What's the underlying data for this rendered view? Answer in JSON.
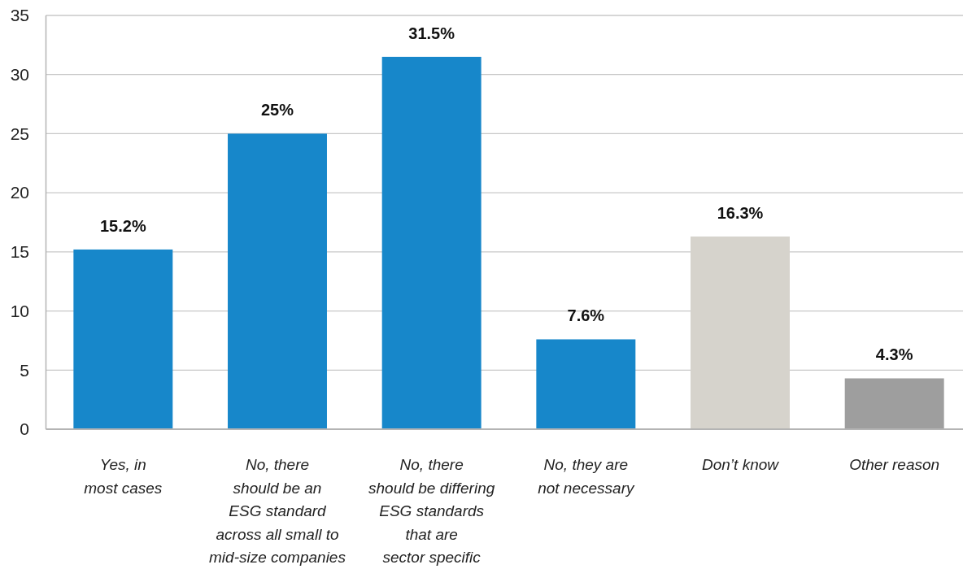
{
  "chart_data": {
    "type": "bar",
    "categories": [
      "Yes, in\nmost cases",
      "No, there\nshould be an\nESG standard\nacross all small to\nmid-size companies",
      "No, there\nshould be differing\nESG standards\nthat are\nsector specific",
      "No, they are\nnot necessary",
      "Don’t know",
      "Other reason"
    ],
    "values": [
      15.2,
      25,
      31.5,
      7.6,
      16.3,
      4.3
    ],
    "colors": [
      "#1787ca",
      "#1787ca",
      "#1787ca",
      "#1787ca",
      "#d6d3cc",
      "#9e9e9e"
    ],
    "value_labels": [
      "15.2%",
      "25%",
      "31.5%",
      "7.6%",
      "16.3%",
      "4.3%"
    ],
    "ylim": [
      0,
      35
    ],
    "yticks": [
      0,
      5,
      10,
      15,
      20,
      25,
      30,
      35
    ],
    "grid": "y"
  }
}
